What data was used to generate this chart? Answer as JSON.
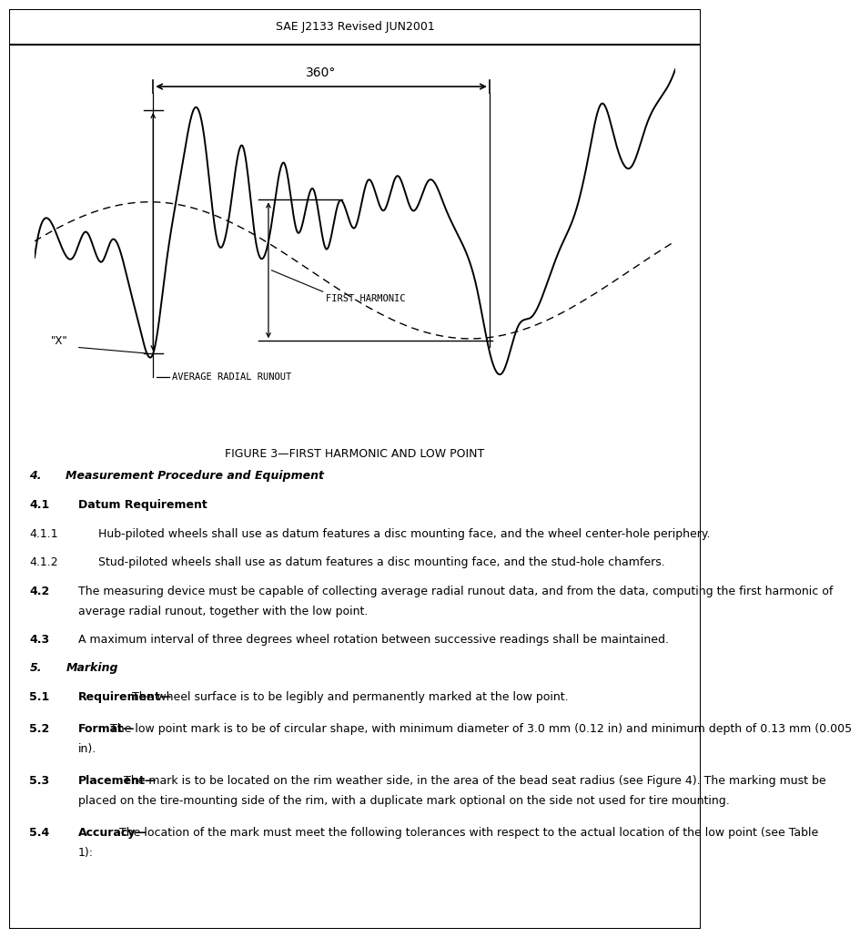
{
  "header_text": "SAE J2133 Revised JUN2001",
  "figure_caption": "FIGURE 3—FIRST HARMONIC AND LOW POINT",
  "dim_label": "360°",
  "label_first_harmonic": "FIRST HARMONIC",
  "label_avg_runout": "AVERAGE RADIAL RUNOUT",
  "label_x": "\"X\"",
  "sections": [
    {
      "num": "4.",
      "title": "Measurement Procedure and Equipment",
      "bold_title": true,
      "italic_title": true,
      "body": null
    },
    {
      "num": "4.1",
      "title": "Datum Requirement",
      "bold_title": true,
      "italic_title": false,
      "body": null
    },
    {
      "num": "4.1.1",
      "title": null,
      "bold_title": false,
      "italic_title": false,
      "body": "Hub-piloted wheels shall use as datum features a disc mounting face, and the wheel center-hole periphery."
    },
    {
      "num": "4.1.2",
      "title": null,
      "bold_title": false,
      "italic_title": false,
      "body": "Stud-piloted wheels shall use as datum features a disc mounting face, and the stud-hole chamfers."
    },
    {
      "num": "4.2",
      "title": null,
      "bold_title": false,
      "italic_title": false,
      "body": "The measuring device must be capable of collecting average radial runout data, and from the data, computing the first harmonic of average radial runout, together with the low point."
    },
    {
      "num": "4.3",
      "title": null,
      "bold_title": false,
      "italic_title": false,
      "body": "A maximum interval of three degrees wheel rotation between successive readings shall be maintained."
    },
    {
      "num": "5.",
      "title": "Marking",
      "bold_title": true,
      "italic_title": true,
      "body": null
    },
    {
      "num": "5.1",
      "title": "Requirement—",
      "bold_title": true,
      "italic_title": false,
      "body": "The wheel surface is to be legibly and permanently marked at the low point."
    },
    {
      "num": "5.2",
      "title": "Format—",
      "bold_title": true,
      "italic_title": false,
      "body": "The low point mark is to be of circular shape, with minimum diameter of 3.0 mm (0.12 in) and minimum depth of 0.13 mm (0.005 in)."
    },
    {
      "num": "5.3",
      "title": "Placement—",
      "bold_title": true,
      "italic_title": false,
      "body": "The mark is to be located on the rim weather side, in the area of the bead seat radius (see Figure 4).  The marking must be placed on the tire-mounting side of the rim, with a duplicate mark optional on the side not used for tire mounting."
    },
    {
      "num": "5.4",
      "title": "Accuracy—",
      "bold_title": true,
      "italic_title": false,
      "body": "The location of the mark must meet the following tolerances with respect to the actual location of the low point (see Table 1):"
    }
  ],
  "bg_color": "#ffffff",
  "text_color": "#000000",
  "border_color": "#000000"
}
